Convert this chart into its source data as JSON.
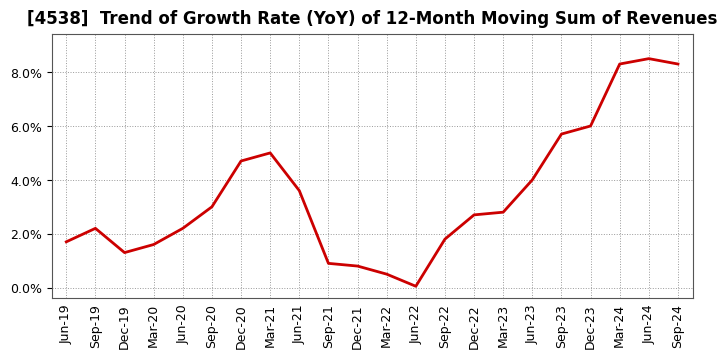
{
  "title": "[4538]  Trend of Growth Rate (YoY) of 12-Month Moving Sum of Revenues",
  "line_color": "#cc0000",
  "line_width": 2.0,
  "background_color": "#ffffff",
  "grid_color": "#999999",
  "x_labels": [
    "Jun-19",
    "Sep-19",
    "Dec-19",
    "Mar-20",
    "Jun-20",
    "Sep-20",
    "Dec-20",
    "Mar-21",
    "Jun-21",
    "Sep-21",
    "Dec-21",
    "Mar-22",
    "Jun-22",
    "Sep-22",
    "Dec-22",
    "Mar-23",
    "Jun-23",
    "Sep-23",
    "Dec-23",
    "Mar-24",
    "Jun-24",
    "Sep-24"
  ],
  "y_values": [
    0.017,
    0.022,
    0.013,
    0.016,
    0.022,
    0.03,
    0.047,
    0.05,
    0.036,
    0.009,
    0.008,
    0.005,
    0.0005,
    0.018,
    0.027,
    0.028,
    0.04,
    0.057,
    0.06,
    0.083,
    0.085,
    0.083
  ],
  "ylim": [
    -0.004,
    0.094
  ],
  "yticks": [
    0.0,
    0.02,
    0.04,
    0.06,
    0.08
  ],
  "title_fontsize": 12,
  "tick_fontsize": 9,
  "spine_color": "#555555"
}
